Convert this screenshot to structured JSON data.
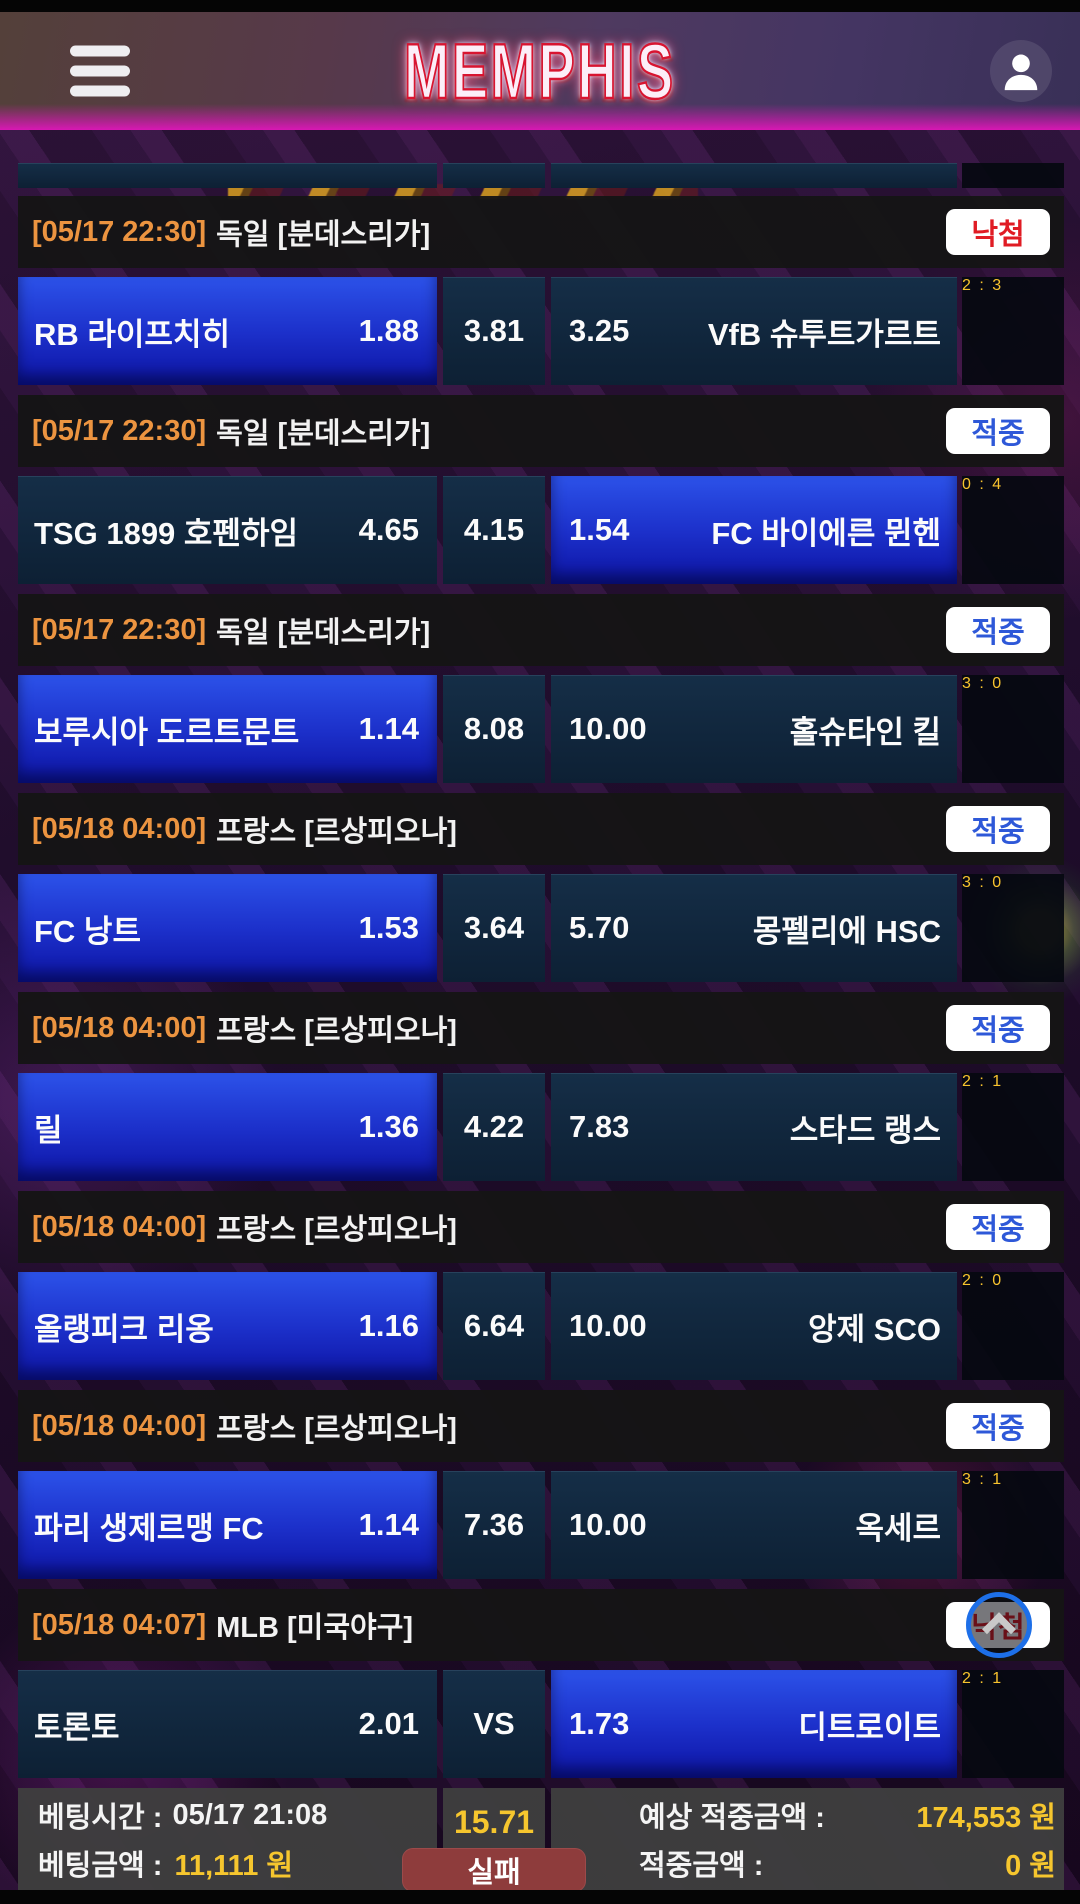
{
  "header": {
    "title": "MEMPHIS"
  },
  "list": {
    "groups": [
      {
        "time": "[05/17 22:30]",
        "league": "독일 [분데스리가]",
        "status": "낙첨",
        "status_type": "lose",
        "pick": "home",
        "home": "RB 라이프치히",
        "home_odds": "1.88",
        "draw_odds": "3.81",
        "away_odds": "3.25",
        "away": "VfB 슈투트가르트",
        "score": "2 : 3"
      },
      {
        "time": "[05/17 22:30]",
        "league": "독일 [분데스리가]",
        "status": "적중",
        "status_type": "win",
        "pick": "away",
        "home": "TSG 1899 호펜하임",
        "home_odds": "4.65",
        "draw_odds": "4.15",
        "away_odds": "1.54",
        "away": "FC 바이에른 뮌헨",
        "score": "0 : 4"
      },
      {
        "time": "[05/17 22:30]",
        "league": "독일 [분데스리가]",
        "status": "적중",
        "status_type": "win",
        "pick": "home",
        "home": "보루시아 도르트문트",
        "home_odds": "1.14",
        "draw_odds": "8.08",
        "away_odds": "10.00",
        "away": "홀슈타인 킬",
        "score": "3 : 0"
      },
      {
        "time": "[05/18 04:00]",
        "league": "프랑스 [르상피오나]",
        "status": "적중",
        "status_type": "win",
        "pick": "home",
        "home": "FC 낭트",
        "home_odds": "1.53",
        "draw_odds": "3.64",
        "away_odds": "5.70",
        "away": "몽펠리에 HSC",
        "score": "3 : 0"
      },
      {
        "time": "[05/18 04:00]",
        "league": "프랑스 [르상피오나]",
        "status": "적중",
        "status_type": "win",
        "pick": "home",
        "home": "릴",
        "home_odds": "1.36",
        "draw_odds": "4.22",
        "away_odds": "7.83",
        "away": "스타드 랭스",
        "score": "2 : 1"
      },
      {
        "time": "[05/18 04:00]",
        "league": "프랑스 [르상피오나]",
        "status": "적중",
        "status_type": "win",
        "pick": "home",
        "home": "올랭피크 리옹",
        "home_odds": "1.16",
        "draw_odds": "6.64",
        "away_odds": "10.00",
        "away": "앙제 SCO",
        "score": "2 : 0"
      },
      {
        "time": "[05/18 04:00]",
        "league": "프랑스 [르상피오나]",
        "status": "적중",
        "status_type": "win",
        "pick": "home",
        "home": "파리 생제르맹 FC",
        "home_odds": "1.14",
        "draw_odds": "7.36",
        "away_odds": "10.00",
        "away": "옥세르",
        "score": "3 : 1"
      },
      {
        "time": "[05/18 04:07]",
        "league": "MLB [미국야구]",
        "status": "낙첨",
        "status_type": "lose",
        "pick": "away",
        "scroll_top": true,
        "home": "토론토",
        "home_odds": "2.01",
        "draw_odds": "VS",
        "away_odds": "1.73",
        "away": "디트로이트",
        "score": "2 : 1"
      }
    ]
  },
  "footer": {
    "bet_time_label": "베팅시간 :",
    "bet_time_value": "05/17 21:08",
    "bet_amount_label": "베팅금액 :",
    "bet_amount_value": "11,111 원",
    "total_odds": "15.71",
    "result_button": "실패",
    "expected_label": "예상 적중금액 :",
    "expected_value": "174,553 원",
    "hit_label": "적중금액 :",
    "hit_value": "0 원"
  },
  "colors": {
    "accent_yellow": "#f6c62e",
    "accent_orange": "#ec9440",
    "win_blue": "#2e58d8",
    "lose_red": "#e01c24",
    "selected_blue_top": "#2c52e9",
    "selected_blue_bottom": "#0d14a4",
    "scroll_ring_blue": "#1d6fe8"
  }
}
